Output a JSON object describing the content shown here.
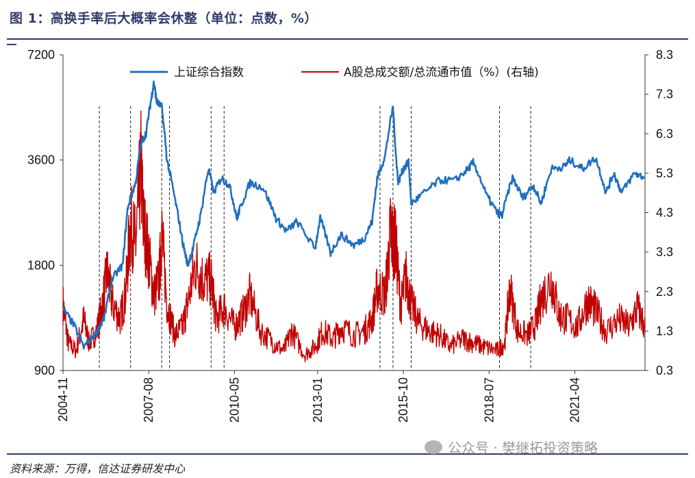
{
  "header": {
    "title": "图 1：高换手率后大概率会休整（单位：点数，%）"
  },
  "footer": {
    "source": "资料来源：万得，信达证券研发中心",
    "watermark": "公众号 · 樊继拓投资策略"
  },
  "colors": {
    "index": "#1f6fbe",
    "turnover": "#c00000",
    "frame": "#2f3b6b"
  },
  "chart_data": {
    "type": "line",
    "title": "",
    "xlabel": "",
    "ylabel": "",
    "x_range": [
      "2004-11",
      "2023-07"
    ],
    "x_tick_labels": [
      "2004-11",
      "2007-08",
      "2010-05",
      "2013-01",
      "2015-10",
      "2018-07",
      "2021-04"
    ],
    "y_left": {
      "scale": "log",
      "ylim": [
        900,
        7200
      ],
      "tick_labels": [
        "900",
        "1800",
        "3600",
        "7200"
      ]
    },
    "y_right": {
      "ylim": [
        0.3,
        8.3
      ],
      "tick_labels": [
        "0.3",
        "1.3",
        "2.3",
        "3.3",
        "4.3",
        "5.3",
        "6.3",
        "7.3",
        "8.3"
      ]
    },
    "legend_placement": "top",
    "vertical_markers": [
      "2006-01",
      "2007-01",
      "2008-01",
      "2008-04",
      "2009-08",
      "2010-01",
      "2015-01",
      "2015-06",
      "2016-01",
      "2018-11",
      "2019-11"
    ],
    "series": [
      {
        "name": "上证综合指数",
        "axis": "left",
        "points": [
          [
            "2004-11",
            1350
          ],
          [
            "2005-03",
            1220
          ],
          [
            "2005-07",
            1050
          ],
          [
            "2005-12",
            1160
          ],
          [
            "2006-03",
            1280
          ],
          [
            "2006-06",
            1650
          ],
          [
            "2006-10",
            1800
          ],
          [
            "2006-12",
            2650
          ],
          [
            "2007-03",
            3100
          ],
          [
            "2007-05",
            4000
          ],
          [
            "2007-07",
            4300
          ],
          [
            "2007-09",
            5400
          ],
          [
            "2007-10",
            6000
          ],
          [
            "2007-11",
            5300
          ],
          [
            "2008-01",
            5100
          ],
          [
            "2008-03",
            3600
          ],
          [
            "2008-06",
            2800
          ],
          [
            "2008-09",
            2100
          ],
          [
            "2008-11",
            1800
          ],
          [
            "2009-01",
            2000
          ],
          [
            "2009-04",
            2500
          ],
          [
            "2009-07",
            3400
          ],
          [
            "2009-09",
            2900
          ],
          [
            "2009-12",
            3200
          ],
          [
            "2010-03",
            3050
          ],
          [
            "2010-06",
            2450
          ],
          [
            "2010-07",
            2600
          ],
          [
            "2010-11",
            3100
          ],
          [
            "2011-04",
            3000
          ],
          [
            "2011-09",
            2450
          ],
          [
            "2012-01",
            2250
          ],
          [
            "2012-05",
            2400
          ],
          [
            "2012-12",
            2000
          ],
          [
            "2013-02",
            2450
          ],
          [
            "2013-06",
            1950
          ],
          [
            "2013-10",
            2200
          ],
          [
            "2014-03",
            2050
          ],
          [
            "2014-07",
            2150
          ],
          [
            "2014-10",
            2400
          ],
          [
            "2014-12",
            3200
          ],
          [
            "2015-03",
            3700
          ],
          [
            "2015-06",
            5100
          ],
          [
            "2015-07",
            3800
          ],
          [
            "2015-08",
            3100
          ],
          [
            "2015-10",
            3400
          ],
          [
            "2015-12",
            3550
          ],
          [
            "2016-01",
            2700
          ],
          [
            "2016-06",
            2900
          ],
          [
            "2016-12",
            3150
          ],
          [
            "2017-06",
            3150
          ],
          [
            "2017-11",
            3400
          ],
          [
            "2018-01",
            3550
          ],
          [
            "2018-06",
            2850
          ],
          [
            "2018-10",
            2550
          ],
          [
            "2018-12",
            2500
          ],
          [
            "2019-04",
            3200
          ],
          [
            "2019-08",
            2800
          ],
          [
            "2019-12",
            3050
          ],
          [
            "2020-03",
            2700
          ],
          [
            "2020-07",
            3400
          ],
          [
            "2020-12",
            3450
          ],
          [
            "2021-02",
            3600
          ],
          [
            "2021-07",
            3400
          ],
          [
            "2021-12",
            3650
          ],
          [
            "2022-04",
            2900
          ],
          [
            "2022-07",
            3300
          ],
          [
            "2022-10",
            2900
          ],
          [
            "2023-03",
            3300
          ],
          [
            "2023-07",
            3200
          ]
        ]
      },
      {
        "name": "A股总成交额/总流通市值（%）(右轴)",
        "axis": "right",
        "points": [
          [
            "2004-11",
            2.0
          ],
          [
            "2005-01",
            1.0
          ],
          [
            "2005-04",
            0.8
          ],
          [
            "2005-07",
            1.6
          ],
          [
            "2005-09",
            1.0
          ],
          [
            "2005-12",
            1.3
          ],
          [
            "2006-02",
            1.9
          ],
          [
            "2006-04",
            2.8
          ],
          [
            "2006-06",
            2.0
          ],
          [
            "2006-09",
            1.6
          ],
          [
            "2006-11",
            2.2
          ],
          [
            "2007-01",
            4.0
          ],
          [
            "2007-03",
            3.5
          ],
          [
            "2007-05",
            5.5
          ],
          [
            "2007-06",
            4.0
          ],
          [
            "2007-08",
            3.2
          ],
          [
            "2007-10",
            2.2
          ],
          [
            "2007-12",
            2.6
          ],
          [
            "2008-01",
            3.8
          ],
          [
            "2008-03",
            2.0
          ],
          [
            "2008-06",
            1.2
          ],
          [
            "2008-09",
            1.4
          ],
          [
            "2008-11",
            2.0
          ],
          [
            "2009-02",
            3.0
          ],
          [
            "2009-05",
            2.6
          ],
          [
            "2009-08",
            2.6
          ],
          [
            "2009-10",
            1.6
          ],
          [
            "2010-01",
            1.9
          ],
          [
            "2010-05",
            1.4
          ],
          [
            "2010-08",
            1.7
          ],
          [
            "2010-11",
            2.2
          ],
          [
            "2011-03",
            1.3
          ],
          [
            "2011-08",
            1.0
          ],
          [
            "2011-12",
            0.8
          ],
          [
            "2012-03",
            1.3
          ],
          [
            "2012-08",
            0.7
          ],
          [
            "2012-12",
            0.9
          ],
          [
            "2013-03",
            1.3
          ],
          [
            "2013-07",
            1.1
          ],
          [
            "2013-10",
            1.4
          ],
          [
            "2014-03",
            1.2
          ],
          [
            "2014-07",
            1.3
          ],
          [
            "2014-10",
            1.6
          ],
          [
            "2014-12",
            2.4
          ],
          [
            "2015-03",
            2.2
          ],
          [
            "2015-05",
            3.8
          ],
          [
            "2015-06",
            3.6
          ],
          [
            "2015-07",
            3.5
          ],
          [
            "2015-09",
            1.9
          ],
          [
            "2015-11",
            2.7
          ],
          [
            "2016-01",
            2.0
          ],
          [
            "2016-04",
            1.5
          ],
          [
            "2016-08",
            1.3
          ],
          [
            "2016-12",
            1.2
          ],
          [
            "2017-04",
            0.9
          ],
          [
            "2017-09",
            1.1
          ],
          [
            "2018-01",
            1.0
          ],
          [
            "2018-05",
            0.9
          ],
          [
            "2018-10",
            0.8
          ],
          [
            "2019-01",
            1.0
          ],
          [
            "2019-03",
            2.4
          ],
          [
            "2019-06",
            1.3
          ],
          [
            "2019-10",
            1.2
          ],
          [
            "2020-01",
            1.5
          ],
          [
            "2020-03",
            2.1
          ],
          [
            "2020-07",
            2.6
          ],
          [
            "2020-10",
            1.7
          ],
          [
            "2021-01",
            1.6
          ],
          [
            "2021-05",
            1.4
          ],
          [
            "2021-09",
            2.1
          ],
          [
            "2021-12",
            1.8
          ],
          [
            "2022-04",
            1.3
          ],
          [
            "2022-09",
            1.6
          ],
          [
            "2023-01",
            1.4
          ],
          [
            "2023-04",
            1.9
          ],
          [
            "2023-07",
            1.4
          ]
        ]
      }
    ]
  }
}
